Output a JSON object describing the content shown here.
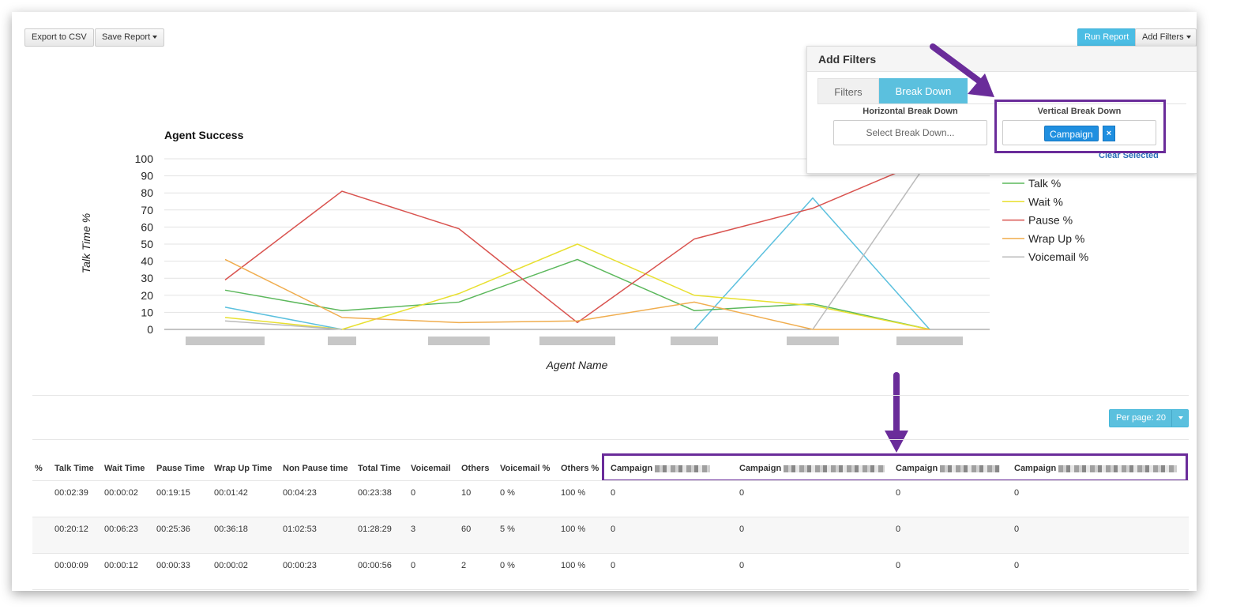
{
  "toolbar": {
    "export_label": "Export to CSV",
    "save_report_label": "Save Report",
    "run_report_label": "Run Report",
    "add_filters_label": "Add Filters"
  },
  "filter_panel": {
    "title": "Add Filters",
    "tabs": [
      {
        "label": "Filters",
        "active": false
      },
      {
        "label": "Break Down",
        "active": true
      }
    ],
    "horizontal": {
      "label": "Horizontal Break Down",
      "placeholder": "Select Break Down..."
    },
    "vertical": {
      "label": "Vertical Break Down",
      "selected_tag": "Campaign",
      "remove_glyph": "×"
    },
    "clear_selected": "Clear Selected"
  },
  "chart_data": {
    "type": "line",
    "title": "Agent Success",
    "xlabel": "Agent Name",
    "ylabel": "Talk Time %",
    "ylim": [
      0,
      100
    ],
    "yticks": [
      0,
      10,
      20,
      30,
      40,
      50,
      60,
      70,
      80,
      90,
      100
    ],
    "grid": true,
    "legend": "right",
    "categories_redacted": true,
    "series": [
      {
        "name": "",
        "color": "#5bc0de",
        "values": [
          13,
          0,
          null,
          null,
          0,
          77,
          0
        ]
      },
      {
        "name": "Talk %",
        "color": "#5cb85c",
        "values": [
          23,
          11,
          16,
          41,
          11,
          15,
          0
        ]
      },
      {
        "name": "Wait %",
        "color": "#e8e030",
        "values": [
          7,
          0,
          21,
          50,
          20,
          14,
          0
        ]
      },
      {
        "name": "Pause %",
        "color": "#d9534f",
        "values": [
          29,
          81,
          59,
          4,
          53,
          71,
          100
        ]
      },
      {
        "name": "Wrap Up %",
        "color": "#f0ad4e",
        "values": [
          41,
          7,
          4,
          5,
          16,
          0,
          0
        ]
      },
      {
        "name": "Voicemail %",
        "color": "#bbbbbb",
        "values": [
          5,
          0,
          null,
          null,
          null,
          0,
          100
        ]
      }
    ]
  },
  "pagination": {
    "per_page_label": "Per page: 20"
  },
  "table": {
    "headers": [
      "%",
      "Talk Time",
      "Wait Time",
      "Pause Time",
      "Wrap Up Time",
      "Non Pause time",
      "Total Time",
      "Voicemail",
      "Others",
      "Voicemail %",
      "Others %",
      "Campaign",
      "Campaign",
      "Campaign",
      "Campaign"
    ],
    "rows": [
      [
        "00:02:39",
        "00:00:02",
        "00:19:15",
        "00:01:42",
        "00:04:23",
        "00:23:38",
        "0",
        "10",
        "0 %",
        "100 %",
        "0",
        "0",
        "0",
        "0"
      ],
      [
        "00:20:12",
        "00:06:23",
        "00:25:36",
        "00:36:18",
        "01:02:53",
        "01:28:29",
        "3",
        "60",
        "5 %",
        "100 %",
        "0",
        "0",
        "0",
        "0"
      ],
      [
        "00:00:09",
        "00:00:12",
        "00:00:33",
        "00:00:02",
        "00:00:23",
        "00:00:56",
        "0",
        "2",
        "0 %",
        "100 %",
        "0",
        "0",
        "0",
        "0"
      ]
    ]
  },
  "colors": {
    "highlight": "#6a2c9a",
    "accent": "#5bc0de"
  }
}
